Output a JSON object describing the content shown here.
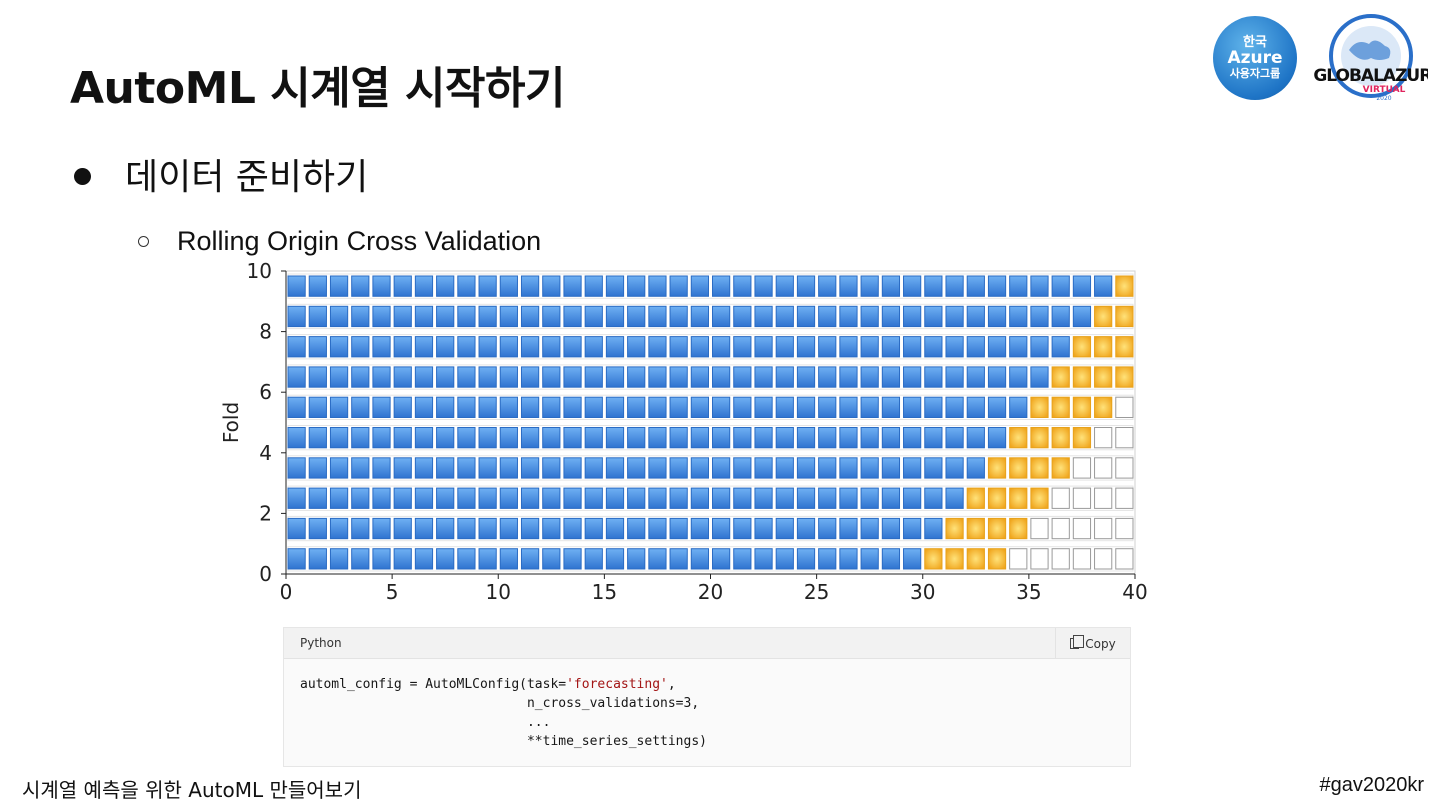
{
  "slide": {
    "title": "AutoML 시계열 시작하기",
    "bullet1": "데이터 준비하기",
    "bullet2": "Rolling Origin Cross Validation",
    "footer_left": "시계열 예측을 위한 AutoML 만들어보기",
    "footer_right": "#gav2020kr"
  },
  "logos": {
    "azure": {
      "line1": "한국",
      "line2": "Azure",
      "line3": "사용자그룹"
    },
    "global": {
      "text": "#GLOBALAZURE",
      "sub": "VIRTUAL",
      "year": "2020"
    }
  },
  "code": {
    "language": "Python",
    "copy_label": "Copy",
    "line1_prefix": "automl_config = AutoMLConfig(task=",
    "line1_string": "'forecasting'",
    "line1_suffix": ",",
    "line2": "                             n_cross_validations=3,",
    "line3": "                             ...",
    "line4": "                             **time_series_settings)"
  },
  "chart_data": {
    "type": "heatmap",
    "ylabel": "Fold",
    "xlim": [
      0,
      40
    ],
    "ylim": [
      0,
      10
    ],
    "xticks": [
      0,
      5,
      10,
      15,
      20,
      25,
      30,
      35,
      40
    ],
    "yticks": [
      0,
      2,
      4,
      6,
      8,
      10
    ],
    "folds": [
      {
        "fold": 0,
        "train_end": 30,
        "test_end": 34
      },
      {
        "fold": 1,
        "train_end": 31,
        "test_end": 35
      },
      {
        "fold": 2,
        "train_end": 32,
        "test_end": 36
      },
      {
        "fold": 3,
        "train_end": 33,
        "test_end": 37
      },
      {
        "fold": 4,
        "train_end": 34,
        "test_end": 38
      },
      {
        "fold": 5,
        "train_end": 35,
        "test_end": 39
      },
      {
        "fold": 6,
        "train_end": 36,
        "test_end": 40
      },
      {
        "fold": 7,
        "train_end": 37,
        "test_end": 40
      },
      {
        "fold": 8,
        "train_end": 38,
        "test_end": 40
      },
      {
        "fold": 9,
        "train_end": 39,
        "test_end": 40
      }
    ],
    "colors": {
      "train": "#3d8be0",
      "test": "#f2b632",
      "unused": "#ffffff"
    }
  }
}
